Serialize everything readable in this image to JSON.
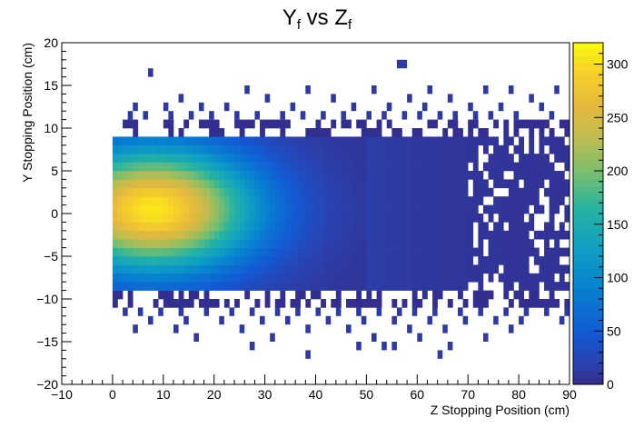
{
  "chart_data": {
    "type": "heatmap",
    "title": {
      "main": "Y",
      "sub1": "f",
      "mid": " vs Z",
      "sub2": "f"
    },
    "xlabel": "Z Stopping Position (cm)",
    "ylabel": "Y Stopping Position (cm)",
    "xlim": [
      -10,
      90
    ],
    "ylim": [
      -20,
      20
    ],
    "x_ticks": [
      "−10",
      "0",
      "10",
      "20",
      "30",
      "40",
      "50",
      "60",
      "70",
      "80",
      "90"
    ],
    "y_ticks": [
      "−20",
      "−15",
      "−10",
      "−5",
      "0",
      "5",
      "10",
      "15",
      "20"
    ],
    "zlim": [
      0,
      320
    ],
    "z_ticks": [
      "0",
      "50",
      "100",
      "150",
      "200",
      "250",
      "300"
    ],
    "bin_width": 1,
    "bin_height": 1,
    "core": {
      "x_range": [
        0,
        55
      ],
      "y_range": [
        -8,
        8
      ],
      "peak_z": 300,
      "peak_center": [
        8,
        0.5
      ],
      "note_falloff_x_start": 30
    },
    "sparse_bins": [
      [
        7,
        16.5
      ],
      [
        56,
        17.5
      ],
      [
        57,
        17.5
      ],
      [
        26,
        14.5
      ],
      [
        38,
        14.5
      ],
      [
        51,
        14.5
      ],
      [
        62,
        14.5
      ],
      [
        73,
        14.5
      ],
      [
        78,
        14.5
      ],
      [
        87,
        14.5
      ],
      [
        13,
        13.5
      ],
      [
        30,
        13.5
      ],
      [
        43,
        13.5
      ],
      [
        58,
        13.5
      ],
      [
        66,
        13.5
      ],
      [
        82,
        13.5
      ],
      [
        4,
        12.5
      ],
      [
        10,
        12.5
      ],
      [
        17,
        12.5
      ],
      [
        22,
        12.5
      ],
      [
        35,
        12.5
      ],
      [
        47,
        12.5
      ],
      [
        54,
        12.5
      ],
      [
        61,
        12.5
      ],
      [
        70,
        12.5
      ],
      [
        76,
        12.5
      ],
      [
        84,
        12.5
      ],
      [
        3,
        11.5
      ],
      [
        6,
        11.5
      ],
      [
        11,
        11.5
      ],
      [
        15,
        11.5
      ],
      [
        19,
        11.5
      ],
      [
        24,
        11.5
      ],
      [
        28,
        11.5
      ],
      [
        33,
        11.5
      ],
      [
        37,
        11.5
      ],
      [
        41,
        11.5
      ],
      [
        45,
        11.5
      ],
      [
        50,
        11.5
      ],
      [
        53,
        11.5
      ],
      [
        57,
        11.5
      ],
      [
        60,
        11.5
      ],
      [
        64,
        11.5
      ],
      [
        67,
        11.5
      ],
      [
        71,
        11.5
      ],
      [
        74,
        11.5
      ],
      [
        79,
        11.5
      ],
      [
        86,
        11.5
      ],
      [
        2,
        -11.5
      ],
      [
        5,
        -11.5
      ],
      [
        9,
        -11.5
      ],
      [
        13,
        -11.5
      ],
      [
        18,
        -11.5
      ],
      [
        23,
        -11.5
      ],
      [
        27,
        -11.5
      ],
      [
        32,
        -11.5
      ],
      [
        36,
        -11.5
      ],
      [
        40,
        -11.5
      ],
      [
        44,
        -11.5
      ],
      [
        48,
        -11.5
      ],
      [
        52,
        -11.5
      ],
      [
        56,
        -11.5
      ],
      [
        59,
        -11.5
      ],
      [
        63,
        -11.5
      ],
      [
        68,
        -11.5
      ],
      [
        72,
        -11.5
      ],
      [
        77,
        -11.5
      ],
      [
        81,
        -11.5
      ],
      [
        85,
        -11.5
      ],
      [
        89,
        -11.5
      ],
      [
        7,
        -12.5
      ],
      [
        14,
        -12.5
      ],
      [
        21,
        -12.5
      ],
      [
        29,
        -12.5
      ],
      [
        34,
        -12.5
      ],
      [
        42,
        -12.5
      ],
      [
        49,
        -12.5
      ],
      [
        55,
        -12.5
      ],
      [
        62,
        -12.5
      ],
      [
        69,
        -12.5
      ],
      [
        75,
        -12.5
      ],
      [
        80,
        -12.5
      ],
      [
        88,
        -12.5
      ],
      [
        4,
        -13.5
      ],
      [
        12,
        -13.5
      ],
      [
        25,
        -13.5
      ],
      [
        38,
        -13.5
      ],
      [
        46,
        -13.5
      ],
      [
        58,
        -13.5
      ],
      [
        65,
        -13.5
      ],
      [
        78,
        -13.5
      ],
      [
        16,
        -14.5
      ],
      [
        31,
        -14.5
      ],
      [
        51,
        -14.5
      ],
      [
        60,
        -14.5
      ],
      [
        73,
        -14.5
      ],
      [
        27,
        -15.5
      ],
      [
        48,
        -15.5
      ],
      [
        53,
        -15.5
      ],
      [
        55,
        -15.5
      ],
      [
        66,
        -15.5
      ],
      [
        38,
        -16.5
      ],
      [
        64,
        -16.5
      ]
    ]
  }
}
